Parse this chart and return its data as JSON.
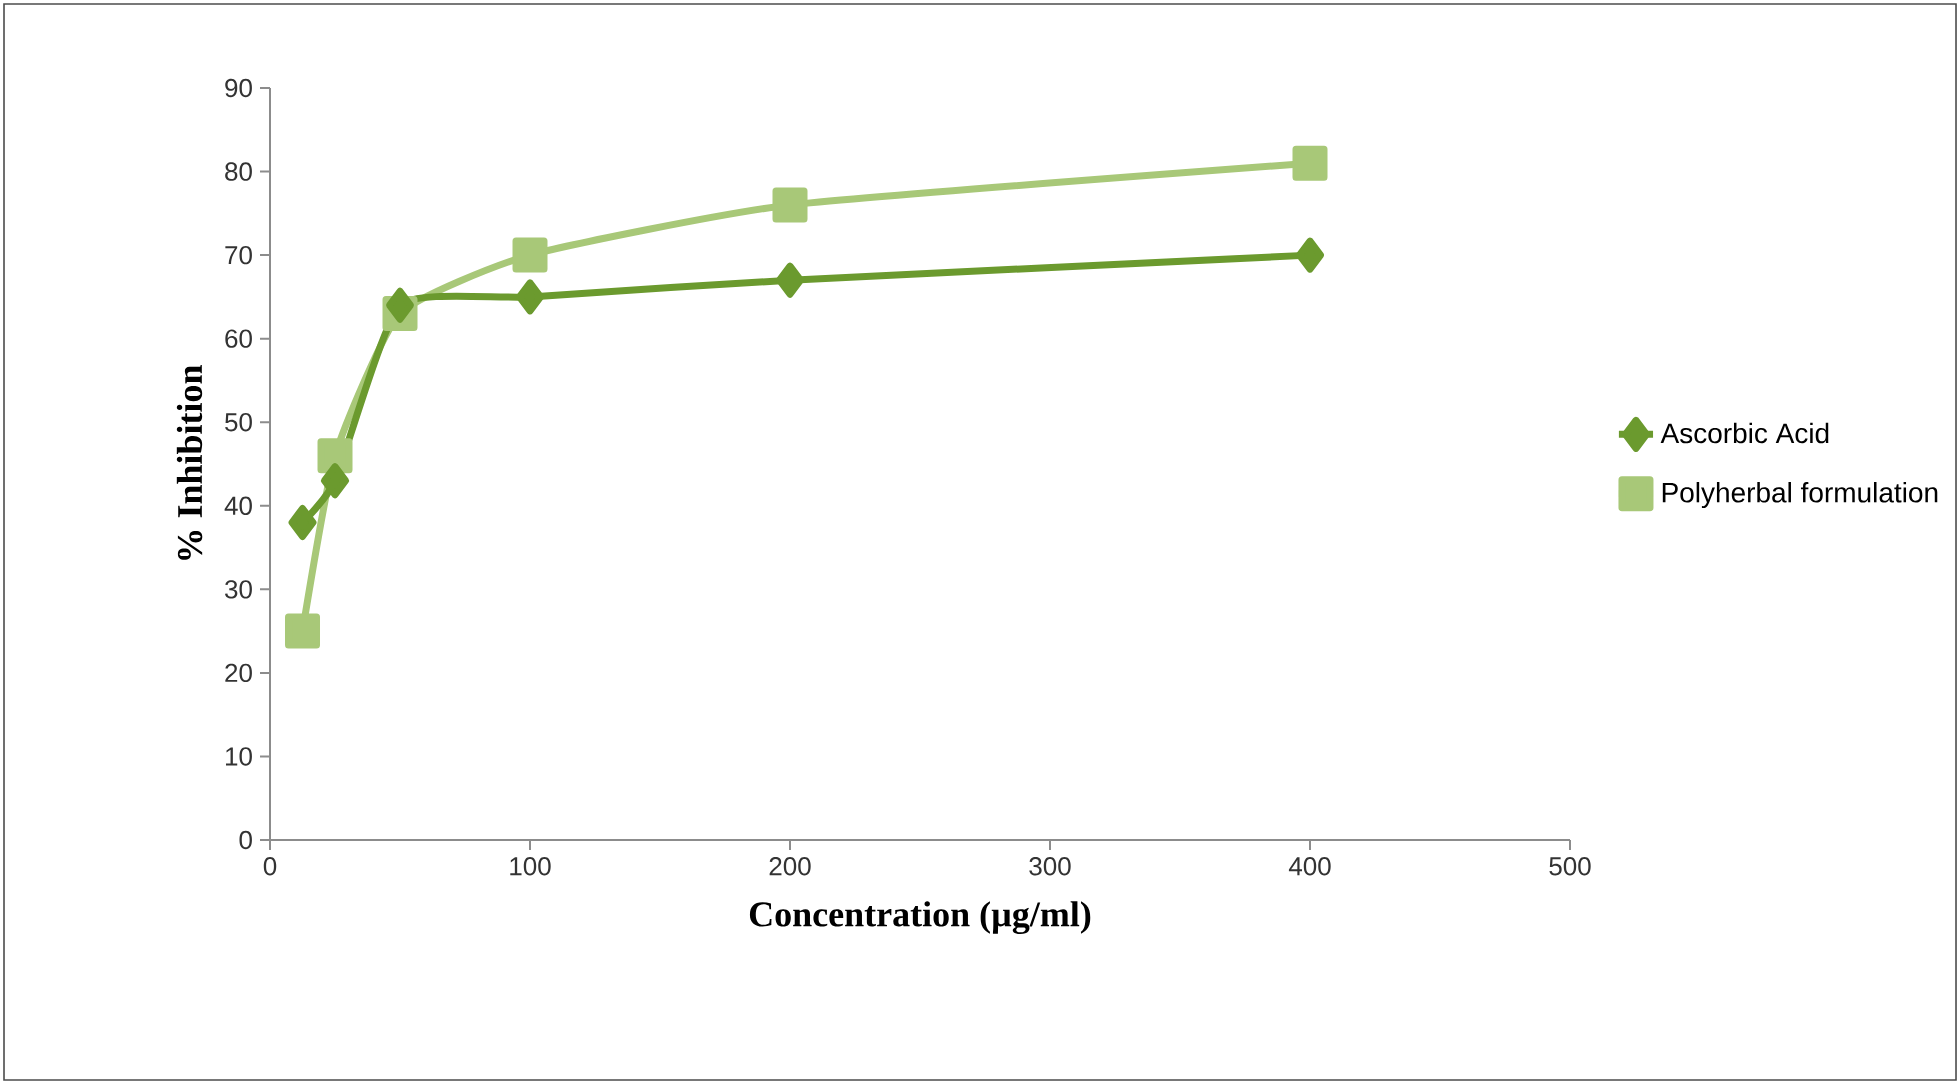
{
  "chart_data": {
    "type": "line",
    "xlabel": "Concentration (µg/ml)",
    "ylabel": "% Inhibition",
    "x": [
      12.5,
      25,
      50,
      100,
      200,
      400
    ],
    "series": [
      {
        "name": "Ascorbic Acid",
        "color": "#6b9a2e",
        "marker": "diamond",
        "values": [
          38,
          43,
          64,
          65,
          67,
          70
        ]
      },
      {
        "name": "Polyherbal formulation",
        "color": "#a8c878",
        "marker": "square",
        "values": [
          25,
          46,
          63,
          70,
          76,
          81
        ]
      }
    ],
    "xlim": [
      0,
      500
    ],
    "xticks": [
      0,
      100,
      200,
      300,
      400,
      500
    ],
    "ylim": [
      0,
      90
    ],
    "yticks": [
      0,
      10,
      20,
      30,
      40,
      50,
      60,
      70,
      80,
      90
    ],
    "grid": false,
    "legend": "right"
  }
}
